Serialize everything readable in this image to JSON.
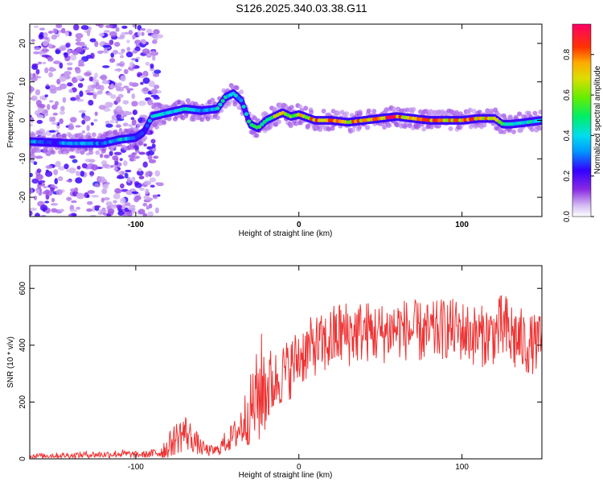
{
  "title": "S126.2025.340.03.38.G11",
  "colors": {
    "snr_line": "#ee3333",
    "spectrum_core": "#4400dd"
  },
  "chart_data": [
    {
      "type": "heatmap",
      "name": "spectrogram",
      "xlabel": "Height of straight line (km)",
      "ylabel": "Frequency (Hz)",
      "xlim": [
        -165,
        149
      ],
      "ylim": [
        -25,
        25
      ],
      "xticks": [
        -100,
        0,
        100
      ],
      "xtick_labels": [
        "-100",
        "0",
        "100"
      ],
      "yticks": [
        -20,
        -10,
        0,
        10,
        20
      ],
      "ytick_labels": [
        "-20",
        "-10",
        "0",
        "10",
        "20"
      ],
      "colorbar": {
        "label": "Normalized spectral amplitude",
        "range": [
          0,
          0.95
        ],
        "ticks": [
          0.0,
          0.2,
          0.4,
          0.6,
          0.8
        ],
        "tick_labels": [
          "0.0",
          "0.2",
          "0.4",
          "0.6",
          "0.8"
        ]
      },
      "ridge": {
        "x": [
          -165,
          -150,
          -140,
          -130,
          -120,
          -110,
          -100,
          -95,
          -90,
          -80,
          -70,
          -60,
          -50,
          -45,
          -40,
          -35,
          -30,
          -25,
          -20,
          -15,
          -10,
          -5,
          0,
          10,
          20,
          30,
          40,
          50,
          60,
          70,
          80,
          90,
          100,
          110,
          120,
          125,
          130,
          140,
          149
        ],
        "y": [
          -5.5,
          -5.8,
          -6,
          -6,
          -6,
          -5,
          -4.5,
          -3,
          1,
          2,
          3,
          2.5,
          3,
          6,
          7,
          5,
          -1,
          -2,
          0,
          1,
          2,
          1,
          1.5,
          0,
          0,
          -0.5,
          0,
          0.5,
          1,
          0.5,
          0,
          0,
          0,
          0.5,
          0.5,
          -1,
          -1,
          -0.5,
          0
        ],
        "amplitude": [
          0.4,
          0.3,
          0.4,
          0.4,
          0.3,
          0.45,
          0.35,
          0.3,
          0.4,
          0.45,
          0.5,
          0.4,
          0.45,
          0.5,
          0.45,
          0.4,
          0.5,
          0.6,
          0.6,
          0.7,
          0.75,
          0.7,
          0.75,
          0.85,
          0.85,
          0.8,
          0.85,
          0.9,
          0.9,
          0.85,
          0.85,
          0.85,
          0.9,
          0.85,
          0.8,
          0.5,
          0.45,
          0.5,
          0.5
        ]
      }
    },
    {
      "type": "line",
      "name": "snr",
      "xlabel": "Height of straight line (km)",
      "ylabel": "SNR (10 * v/v)",
      "xlim": [
        -165,
        149
      ],
      "ylim": [
        0,
        680
      ],
      "xticks": [
        -100,
        0,
        100
      ],
      "xtick_labels": [
        "-100",
        "0",
        "100"
      ],
      "yticks": [
        0,
        200,
        400,
        600
      ],
      "ytick_labels": [
        "0",
        "200",
        "400",
        "600"
      ],
      "series": [
        {
          "name": "SNR",
          "x": [
            -165,
            -150,
            -140,
            -130,
            -120,
            -110,
            -100,
            -95,
            -90,
            -85,
            -80,
            -75,
            -70,
            -65,
            -60,
            -55,
            -50,
            -45,
            -40,
            -35,
            -30,
            -25,
            -22,
            -20,
            -15,
            -10,
            -5,
            0,
            5,
            10,
            15,
            20,
            25,
            30,
            40,
            50,
            60,
            70,
            80,
            90,
            100,
            110,
            120,
            125,
            130,
            135,
            140,
            149
          ],
          "mean": [
            10,
            12,
            12,
            15,
            15,
            18,
            15,
            15,
            18,
            25,
            45,
            75,
            95,
            70,
            40,
            28,
            30,
            60,
            80,
            120,
            170,
            220,
            260,
            250,
            270,
            300,
            320,
            360,
            380,
            400,
            400,
            420,
            440,
            440,
            450,
            440,
            460,
            450,
            440,
            460,
            450,
            430,
            440,
            460,
            430,
            420,
            400,
            410
          ],
          "amplitude": [
            10,
            10,
            10,
            12,
            12,
            15,
            12,
            12,
            15,
            30,
            45,
            60,
            70,
            50,
            30,
            20,
            20,
            40,
            50,
            90,
            120,
            180,
            210,
            160,
            110,
            110,
            110,
            110,
            110,
            110,
            110,
            120,
            120,
            120,
            110,
            110,
            110,
            110,
            110,
            110,
            110,
            110,
            110,
            130,
            140,
            120,
            110,
            100
          ]
        }
      ]
    }
  ]
}
